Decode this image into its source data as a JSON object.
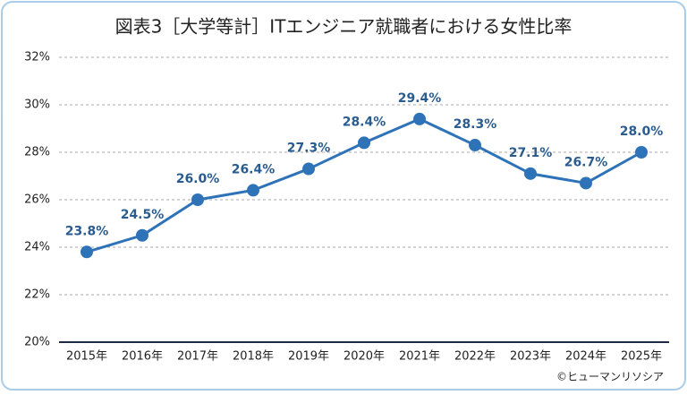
{
  "chart_data": {
    "type": "line",
    "title": "図表3［大学等計］ITエンジニア就職者における女性比率",
    "categories": [
      "2015年",
      "2016年",
      "2017年",
      "2018年",
      "2019年",
      "2020年",
      "2021年",
      "2022年",
      "2023年",
      "2024年",
      "2025年"
    ],
    "values": [
      23.8,
      24.5,
      26.0,
      26.4,
      27.3,
      28.4,
      29.4,
      28.3,
      27.1,
      26.7,
      28.0
    ],
    "value_labels": [
      "23.8%",
      "24.5%",
      "26.0%",
      "26.4%",
      "27.3%",
      "28.4%",
      "29.4%",
      "28.3%",
      "27.1%",
      "26.7%",
      "28.0%"
    ],
    "color": "#2e72b8",
    "ylim": [
      20,
      32
    ],
    "yticks": [
      {
        "value": 20,
        "label": "20%"
      },
      {
        "value": 22,
        "label": "22%"
      },
      {
        "value": 24,
        "label": "24%"
      },
      {
        "value": 26,
        "label": "26%"
      },
      {
        "value": 28,
        "label": "28%"
      },
      {
        "value": 30,
        "label": "30%"
      },
      {
        "value": 32,
        "label": "32%"
      }
    ],
    "grid": true,
    "source": "©ヒューマンリソシア"
  }
}
